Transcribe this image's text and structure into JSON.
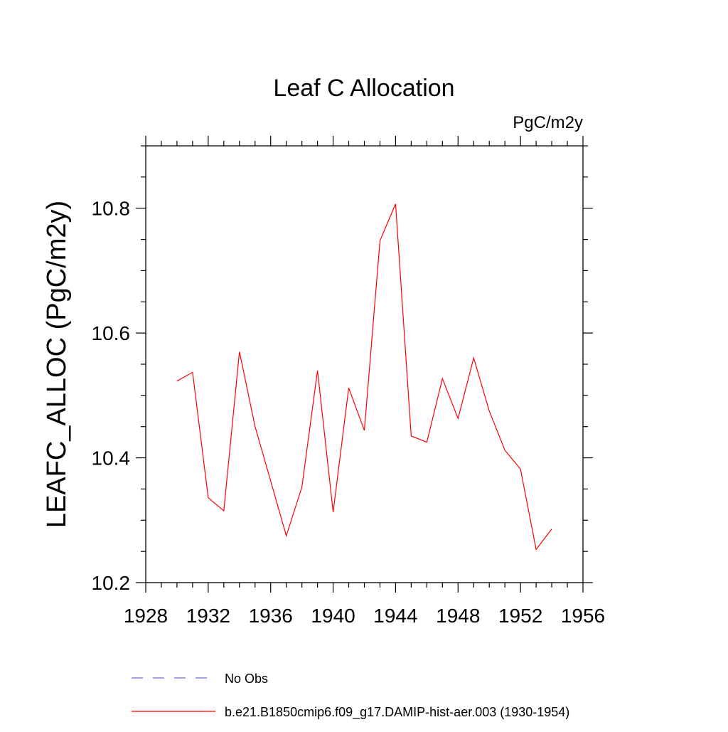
{
  "chart_data": {
    "type": "line",
    "title": "Leaf C Allocation",
    "units_label": "PgC/m2y",
    "ylabel": "LEAFC_ALLOC  (PgC/m2y)",
    "xlabel": "",
    "xlim": [
      1928,
      1956
    ],
    "ylim": [
      10.2,
      10.9
    ],
    "x_ticks": [
      1928,
      1932,
      1936,
      1940,
      1944,
      1948,
      1952,
      1956
    ],
    "x_tick_labels": [
      "1928",
      "1932",
      "1936",
      "1940",
      "1944",
      "1948",
      "1952",
      "1956"
    ],
    "y_ticks": [
      10.2,
      10.4,
      10.6,
      10.8
    ],
    "y_tick_labels": [
      "10.2",
      "10.4",
      "10.6",
      "10.8"
    ],
    "grid": false,
    "legend_position": "bottom",
    "series": [
      {
        "name": "No Obs",
        "color": "#6a6ad8",
        "dash": "dashed",
        "x": [],
        "values": []
      },
      {
        "name": "b.e21.B1850cmip6.f09_g17.DAMIP-hist-aer.003 (1930-1954)",
        "color": "#ff0000",
        "dash": "solid",
        "x": [
          1930,
          1931,
          1932,
          1933,
          1934,
          1935,
          1936,
          1937,
          1938,
          1939,
          1940,
          1941,
          1942,
          1943,
          1944,
          1945,
          1946,
          1947,
          1948,
          1949,
          1950,
          1951,
          1952,
          1953,
          1954
        ],
        "values": [
          10.523,
          10.537,
          10.336,
          10.315,
          10.57,
          10.45,
          10.363,
          10.275,
          10.353,
          10.54,
          10.313,
          10.512,
          10.444,
          10.748,
          10.807,
          10.435,
          10.425,
          10.527,
          10.463,
          10.56,
          10.475,
          10.412,
          10.382,
          10.253,
          10.286
        ]
      }
    ]
  }
}
